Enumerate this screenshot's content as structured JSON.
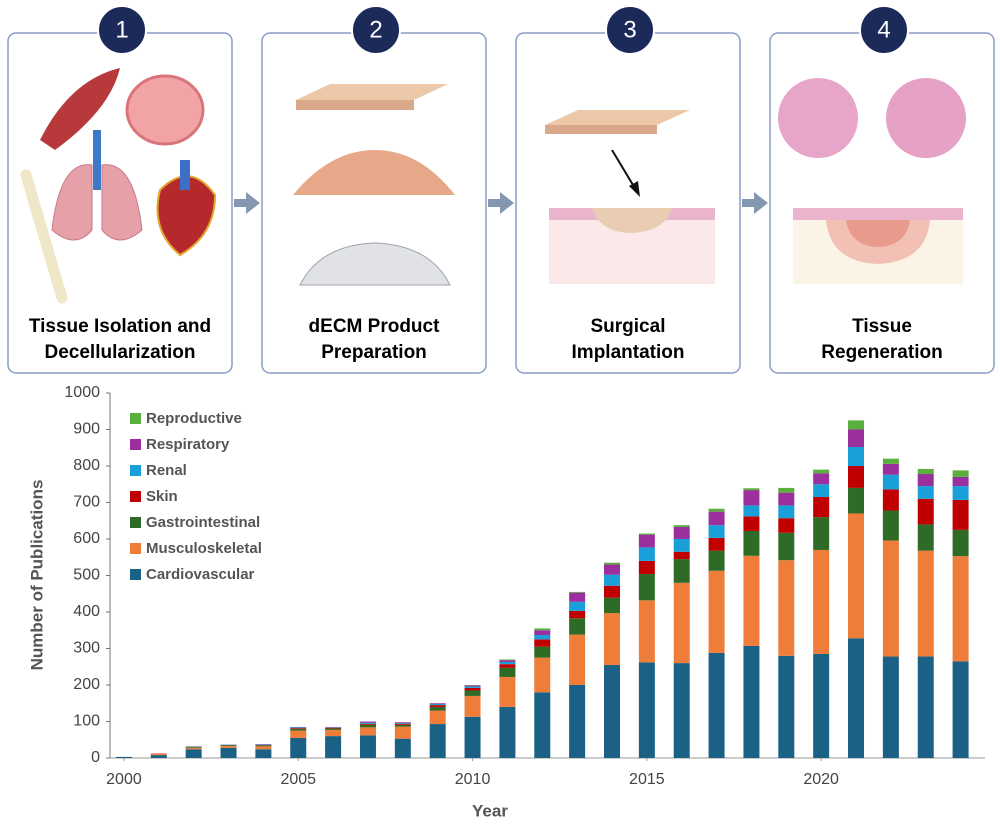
{
  "steps": [
    {
      "number": "1",
      "lines": [
        "Tissue Isolation and",
        "Decellularization"
      ]
    },
    {
      "number": "2",
      "lines": [
        "dECM Product",
        "Preparation"
      ]
    },
    {
      "number": "3",
      "lines": [
        "Surgical",
        "Implantation"
      ]
    },
    {
      "number": "4",
      "lines": [
        "Tissue",
        "Regeneration"
      ]
    }
  ],
  "chart_data": {
    "type": "bar",
    "stacked": true,
    "x_label": "Year",
    "y_label": "Number of Publications",
    "x": [
      2000,
      2001,
      2002,
      2003,
      2004,
      2005,
      2006,
      2007,
      2008,
      2009,
      2010,
      2011,
      2012,
      2013,
      2014,
      2015,
      2016,
      2017,
      2018,
      2019,
      2020,
      2021,
      2022,
      2023,
      2024
    ],
    "xlim": [
      1999.6,
      2024.7
    ],
    "xticks": [
      2000,
      2005,
      2010,
      2015,
      2020
    ],
    "ylim": [
      0,
      1000
    ],
    "yticks": [
      0,
      100,
      200,
      300,
      400,
      500,
      600,
      700,
      800,
      900,
      1000
    ],
    "grid": false,
    "legend": "upper left",
    "series": [
      {
        "name": "Cardiovascular",
        "color": "#1b6185",
        "values": [
          3,
          8,
          24,
          28,
          24,
          55,
          60,
          62,
          53,
          93,
          113,
          140,
          180,
          200,
          255,
          262,
          260,
          288,
          307,
          280,
          285,
          328,
          278,
          278,
          265
        ]
      },
      {
        "name": "Musculoskeletal",
        "color": "#ee7d3a",
        "values": [
          0,
          3,
          4,
          5,
          8,
          20,
          17,
          22,
          33,
          37,
          57,
          82,
          95,
          138,
          142,
          170,
          220,
          225,
          247,
          262,
          285,
          342,
          318,
          290,
          288
        ]
      },
      {
        "name": "Gastrointestinal",
        "color": "#2e6b27",
        "values": [
          0,
          0,
          2,
          2,
          3,
          5,
          4,
          7,
          5,
          10,
          15,
          25,
          30,
          45,
          42,
          72,
          65,
          55,
          68,
          75,
          90,
          70,
          82,
          72,
          72
        ]
      },
      {
        "name": "Skin",
        "color": "#c00000",
        "values": [
          0,
          1,
          1,
          1,
          1,
          2,
          2,
          3,
          3,
          5,
          7,
          10,
          20,
          20,
          33,
          36,
          20,
          35,
          40,
          40,
          55,
          60,
          58,
          70,
          82
        ]
      },
      {
        "name": "Renal",
        "color": "#1aa0d8",
        "values": [
          0,
          0,
          1,
          1,
          1,
          2,
          1,
          3,
          2,
          3,
          4,
          6,
          12,
          25,
          30,
          37,
          35,
          35,
          30,
          35,
          35,
          52,
          40,
          35,
          38
        ]
      },
      {
        "name": "Respiratory",
        "color": "#9b2f9e",
        "values": [
          0,
          0,
          0,
          0,
          1,
          1,
          1,
          3,
          2,
          2,
          3,
          5,
          13,
          25,
          28,
          35,
          33,
          37,
          42,
          35,
          30,
          48,
          30,
          33,
          25
        ]
      },
      {
        "name": "Reproductive",
        "color": "#5ab03c",
        "values": [
          0,
          0,
          0,
          0,
          0,
          0,
          0,
          0,
          0,
          0,
          1,
          2,
          5,
          2,
          5,
          3,
          5,
          8,
          5,
          13,
          10,
          25,
          14,
          14,
          18
        ]
      }
    ]
  }
}
